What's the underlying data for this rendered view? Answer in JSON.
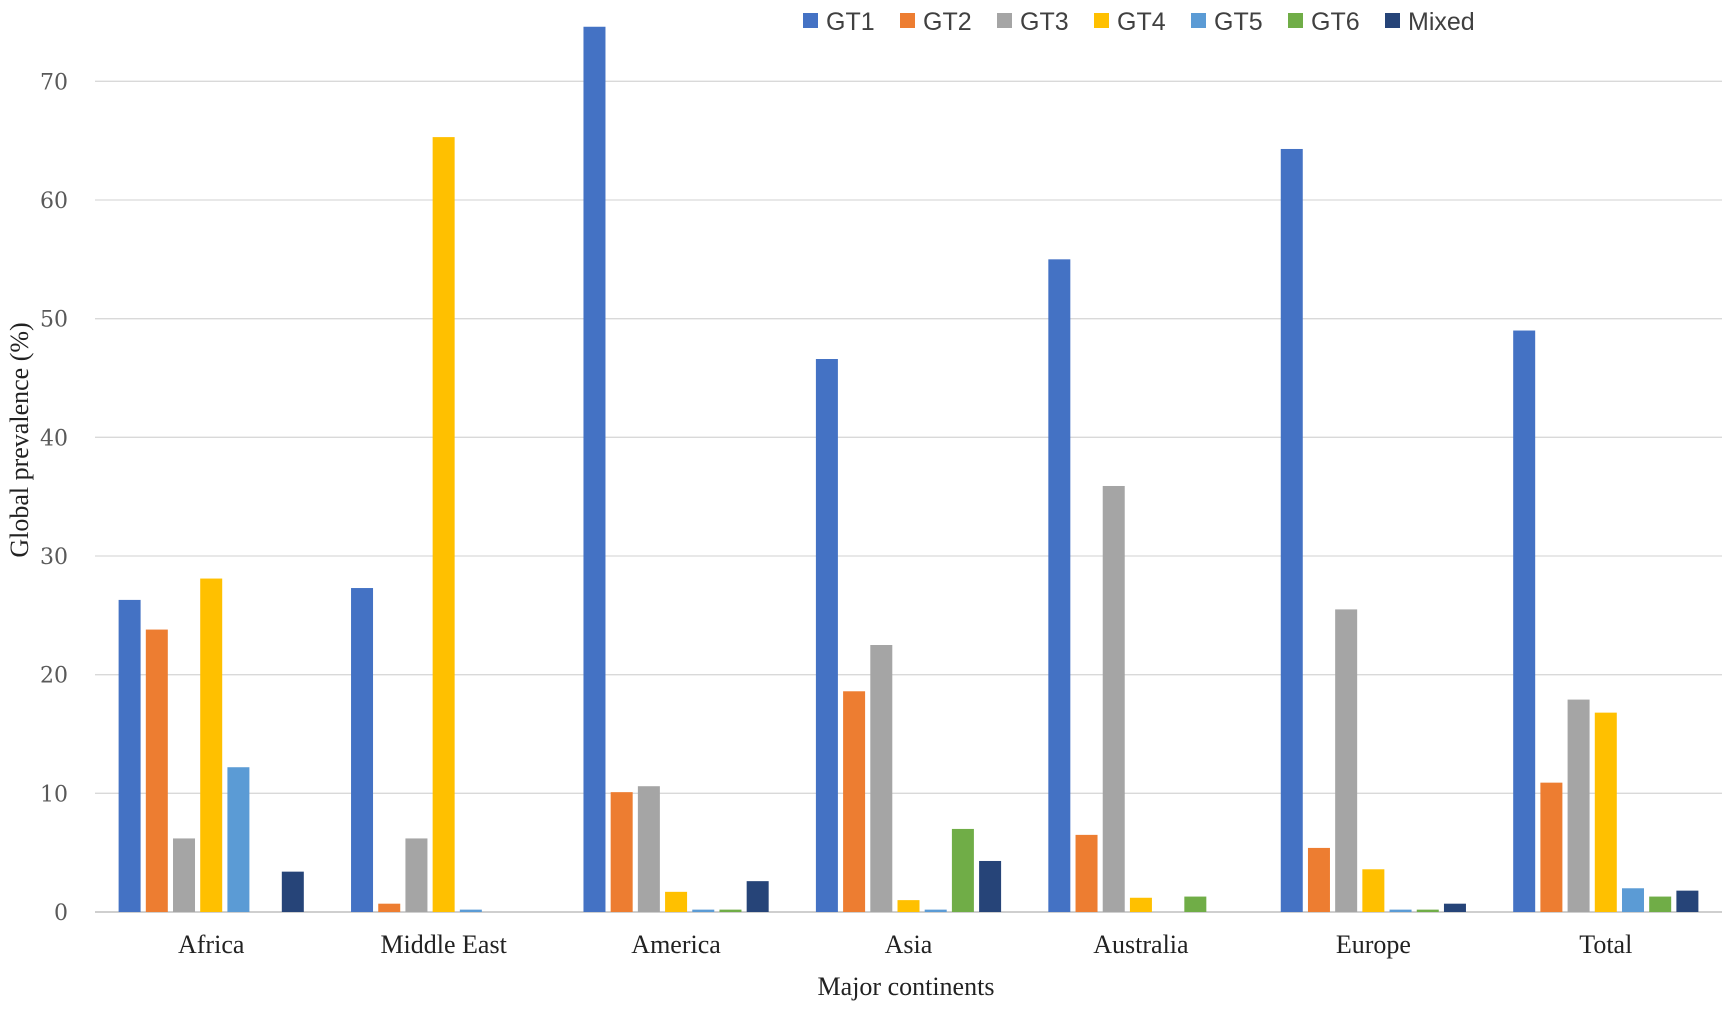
{
  "chart_data": {
    "type": "bar",
    "title": "",
    "xlabel": "Major continents",
    "ylabel": "Global prevalence (%)",
    "ylim": [
      0,
      75
    ],
    "yticks": [
      0,
      10,
      20,
      30,
      40,
      50,
      60,
      70
    ],
    "grid": true,
    "legend_position": "top-right",
    "categories": [
      "Africa",
      "Middle East",
      "America",
      "Asia",
      "Australia",
      "Europe",
      "Total"
    ],
    "series": [
      {
        "name": "GT1",
        "color": "#4472C4",
        "values": [
          26.3,
          27.3,
          74.6,
          46.6,
          55.0,
          64.3,
          49.0
        ]
      },
      {
        "name": "GT2",
        "color": "#ED7D31",
        "values": [
          23.8,
          0.7,
          10.1,
          18.6,
          6.5,
          5.4,
          10.9
        ]
      },
      {
        "name": "GT3",
        "color": "#A5A5A5",
        "values": [
          6.2,
          6.2,
          10.6,
          22.5,
          35.9,
          25.5,
          17.9
        ]
      },
      {
        "name": "GT4",
        "color": "#FFC000",
        "values": [
          28.1,
          65.3,
          1.7,
          1.0,
          1.2,
          3.6,
          16.8
        ]
      },
      {
        "name": "GT5",
        "color": "#5B9BD5",
        "values": [
          12.2,
          0.2,
          0.2,
          0.2,
          0.0,
          0.2,
          2.0
        ]
      },
      {
        "name": "GT6",
        "color": "#70AD47",
        "values": [
          0.0,
          0.0,
          0.2,
          7.0,
          1.3,
          0.2,
          1.3
        ]
      },
      {
        "name": "Mixed",
        "color": "#264478",
        "values": [
          3.4,
          0.0,
          2.6,
          4.3,
          0.0,
          0.7,
          1.8
        ]
      }
    ]
  }
}
